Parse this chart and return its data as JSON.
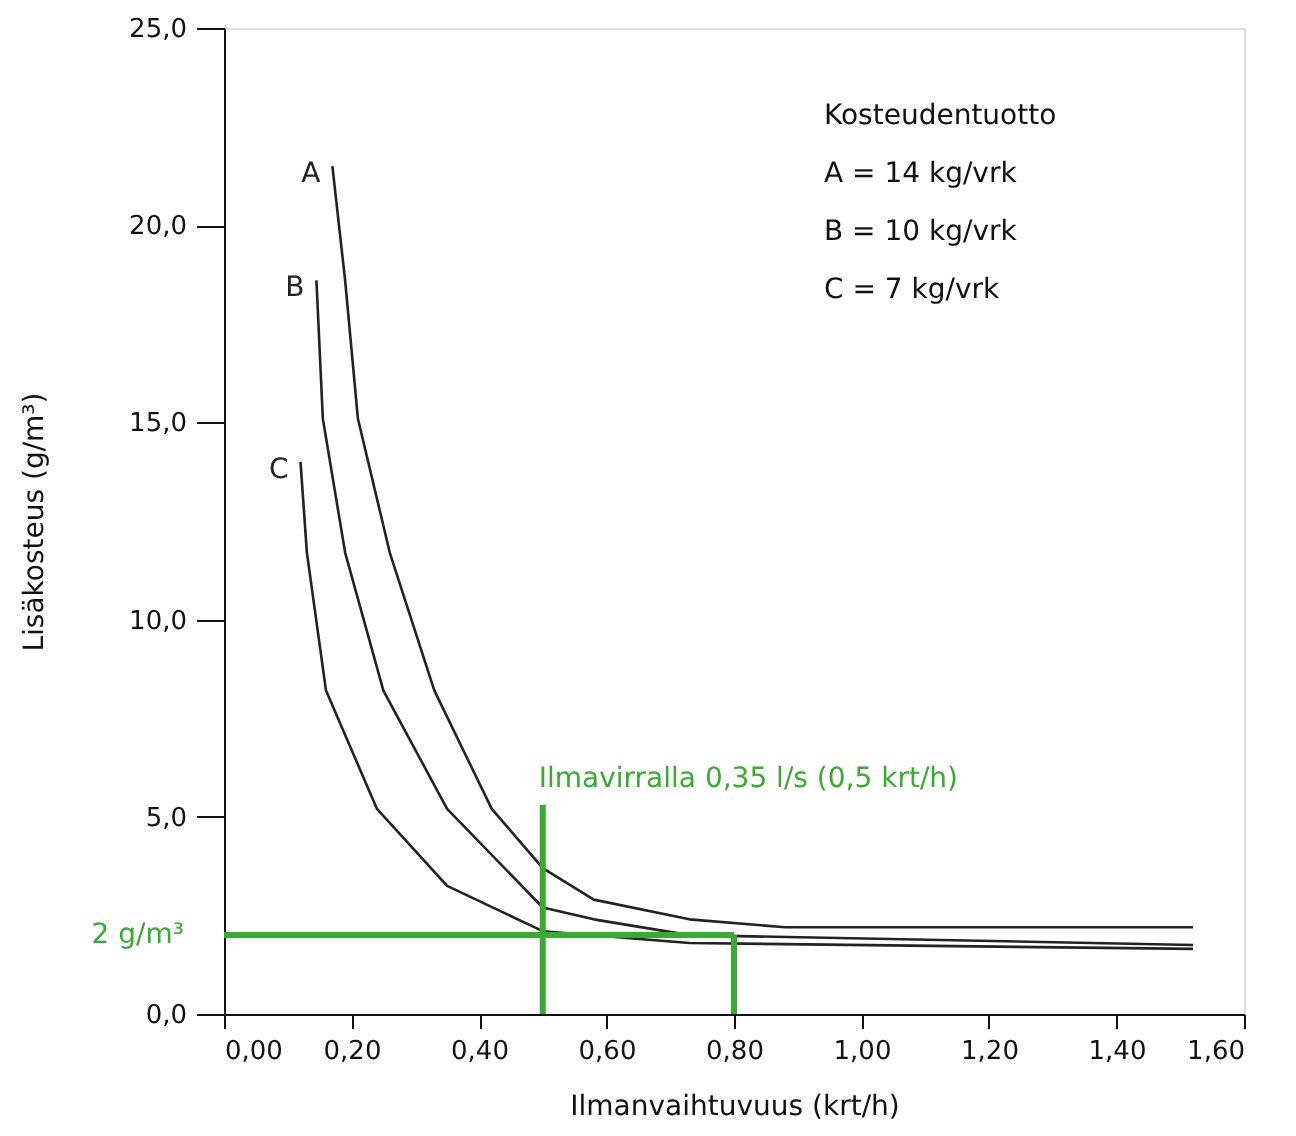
{
  "chart_data": {
    "type": "line",
    "xlabel": "Ilmanvaihtuvuus (krt/h)",
    "ylabel": "Lisäkosteus (g/m³)",
    "xlim": [
      0,
      1.6
    ],
    "ylim": [
      0,
      25
    ],
    "xticks": [
      {
        "value": 0,
        "label": "0,00"
      },
      {
        "value": 0.2,
        "label": "0,20"
      },
      {
        "value": 0.4,
        "label": "0,40"
      },
      {
        "value": 0.6,
        "label": "0,60"
      },
      {
        "value": 0.8,
        "label": "0,80"
      },
      {
        "value": 1.0,
        "label": "1,00"
      },
      {
        "value": 1.2,
        "label": "1,20"
      },
      {
        "value": 1.4,
        "label": "1,40"
      },
      {
        "value": 1.6,
        "label": "1,60"
      }
    ],
    "yticks": [
      {
        "value": 0,
        "label": "0,0"
      },
      {
        "value": 5,
        "label": "5,0"
      },
      {
        "value": 10,
        "label": "10,0"
      },
      {
        "value": 15,
        "label": "15,0"
      },
      {
        "value": 20,
        "label": "20,0"
      },
      {
        "value": 25,
        "label": "25,0"
      }
    ],
    "series": [
      {
        "name": "A",
        "color": "#222222",
        "x": [
          0.17,
          0.19,
          0.21,
          0.26,
          0.33,
          0.42,
          0.5,
          0.58,
          0.73,
          0.88,
          1.52
        ],
        "values": [
          21.5,
          18.6,
          15.1,
          11.7,
          8.2,
          5.2,
          3.7,
          2.9,
          2.4,
          2.2,
          2.2
        ]
      },
      {
        "name": "B",
        "color": "#222222",
        "x": [
          0.145,
          0.155,
          0.19,
          0.25,
          0.35,
          0.5,
          0.58,
          0.73,
          1.52
        ],
        "values": [
          18.6,
          15.1,
          11.7,
          8.2,
          5.2,
          2.7,
          2.4,
          2.0,
          1.75
        ]
      },
      {
        "name": "C",
        "color": "#222222",
        "x": [
          0.12,
          0.13,
          0.16,
          0.24,
          0.35,
          0.5,
          0.73,
          1.52
        ],
        "values": [
          14.0,
          11.7,
          8.2,
          5.2,
          3.25,
          2.1,
          1.8,
          1.65
        ]
      },
      {
        "color": "#3aaa35",
        "x": [
          0,
          0.8
        ],
        "values": [
          2,
          2
        ]
      },
      {
        "color": "#3aaa35",
        "x": [
          0.5,
          0.5
        ],
        "values": [
          0,
          5.3
        ]
      },
      {
        "color": "#3aaa35",
        "x": [
          0.8,
          0.8
        ],
        "values": [
          0,
          2
        ]
      }
    ],
    "annotations": [
      "Kosteudentuotto",
      "A = 14 kg/vrk",
      "B = 10 kg/vrk",
      "C = 7 kg/vrk",
      {
        "text": "Ilmavirralla 0,35 l/s (0,5 krt/h)",
        "x": 0.5,
        "y": 5.3
      },
      {
        "text": "2 g/m³",
        "x": 0,
        "y": 2
      }
    ],
    "grid": false,
    "marker": "none",
    "line_style": "solid"
  }
}
